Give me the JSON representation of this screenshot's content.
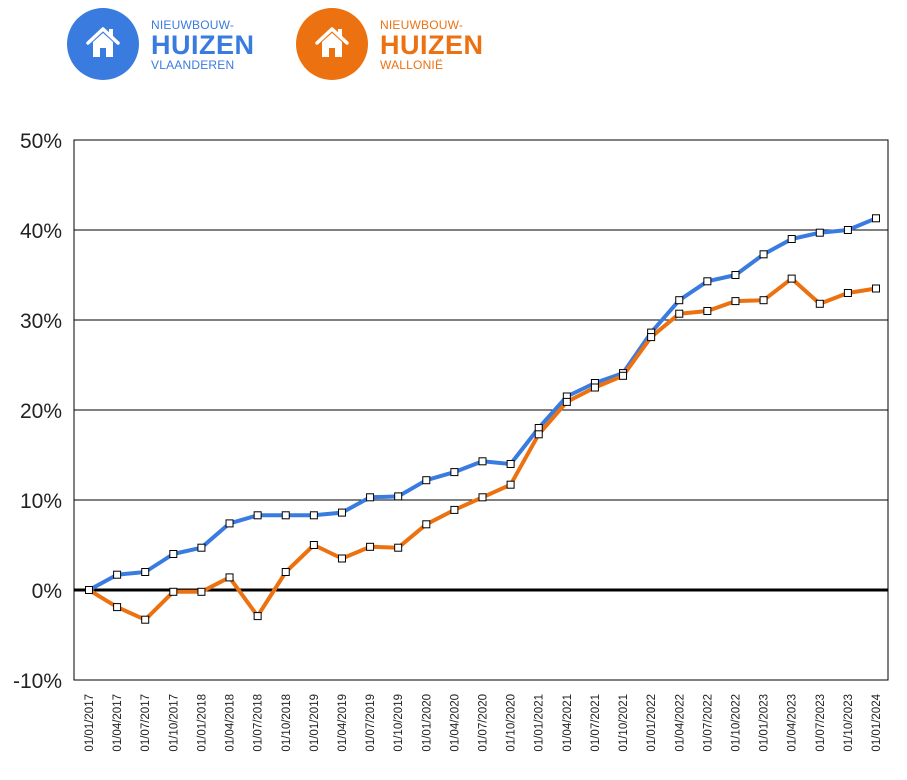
{
  "legend": {
    "flanders": {
      "line1": "NIEUWBOUW-",
      "line2": "HUIZEN",
      "line3": "VLAANDEREN",
      "color": "#3a7be0",
      "icon": "house-icon"
    },
    "wallonia": {
      "line1": "NIEUWBOUW-",
      "line2": "HUIZEN",
      "line3": "WALLONIË",
      "color": "#ec7211",
      "icon": "house-icon"
    }
  },
  "chart_data": {
    "type": "line",
    "title": "",
    "xlabel": "",
    "ylabel": "",
    "ylim": [
      -10,
      50
    ],
    "yticks": [
      -10,
      0,
      10,
      20,
      30,
      40,
      50
    ],
    "ytick_labels": [
      "-10%",
      "0%",
      "10%",
      "20%",
      "30%",
      "40%",
      "50%"
    ],
    "grid": true,
    "categories": [
      "01/01/2017",
      "01/04/2017",
      "01/07/2017",
      "01/10/2017",
      "01/01/2018",
      "01/04/2018",
      "01/07/2018",
      "01/10/2018",
      "01/01/2019",
      "01/04/2019",
      "01/07/2019",
      "01/10/2019",
      "01/01/2020",
      "01/04/2020",
      "01/07/2020",
      "01/10/2020",
      "01/01/2021",
      "01/04/2021",
      "01/07/2021",
      "01/10/2021",
      "01/01/2022",
      "01/04/2022",
      "01/07/2022",
      "01/10/2022",
      "01/01/2023",
      "01/04/2023",
      "01/07/2023",
      "01/10/2023",
      "01/01/2024"
    ],
    "series": [
      {
        "color": "#3a7be0",
        "values": [
          0.0,
          1.7,
          2.0,
          4.0,
          4.7,
          7.4,
          8.3,
          8.3,
          8.3,
          8.6,
          10.3,
          10.4,
          12.2,
          13.1,
          14.3,
          14.0,
          18.0,
          21.5,
          23.0,
          24.1,
          28.6,
          32.2,
          34.3,
          35.0,
          37.3,
          39.0,
          39.7,
          40.0,
          41.3
        ]
      },
      {
        "color": "#ec7211",
        "values": [
          0.0,
          -1.9,
          -3.3,
          -0.2,
          -0.2,
          1.4,
          -2.9,
          2.0,
          5.0,
          3.5,
          4.8,
          4.7,
          7.3,
          8.9,
          10.3,
          11.7,
          17.3,
          20.9,
          22.5,
          23.8,
          28.1,
          30.7,
          31.0,
          32.1,
          32.2,
          34.6,
          31.8,
          33.0,
          33.5
        ]
      }
    ]
  }
}
